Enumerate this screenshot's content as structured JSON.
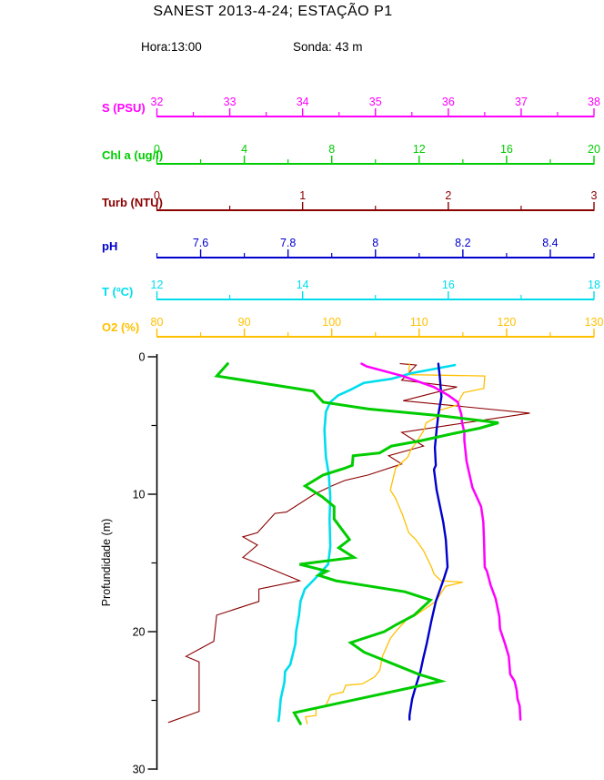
{
  "header": {
    "title": "SANEST 2013-4-24; ESTAÇÃO P1",
    "hora_label": "Hora:13:00",
    "sonda_label": "Sonda: 43 m"
  },
  "chart_data": {
    "type": "line",
    "variant": "oceanographic-depth-profile",
    "title": "SANEST 2013-4-24; ESTAÇÃO P1",
    "ylabel": "Profundidade (m)",
    "y_range": [
      0,
      30
    ],
    "y_major_ticks": [
      0,
      10,
      20,
      30
    ],
    "y_minor_ticks": [
      5,
      15,
      25
    ],
    "grid": "off",
    "legend": "stacked-top-axes",
    "axes": [
      {
        "id": "salinity",
        "label": "S (PSU)",
        "color": "#FF00FF",
        "min": 32,
        "max": 38,
        "major_ticks": [
          32,
          33,
          34,
          35,
          36,
          37,
          38
        ],
        "minor_step": 0.5
      },
      {
        "id": "chl",
        "label": "Chl a (ug/l)",
        "color": "#00CC00",
        "min": 0,
        "max": 20,
        "major_ticks": [
          0,
          4,
          8,
          12,
          16,
          20
        ],
        "minor_step": 2
      },
      {
        "id": "turb",
        "label": "Turb (NTU)",
        "color": "#8B0000",
        "min": 0,
        "max": 3,
        "major_ticks": [
          0,
          1,
          2,
          3
        ],
        "minor_step": 0.5
      },
      {
        "id": "ph",
        "label": "pH",
        "color": "#0000CC",
        "min": 7.5,
        "max": 8.5,
        "major_ticks": [
          7.6,
          7.8,
          8,
          8.2,
          8.4
        ],
        "minor_step": 0.1
      },
      {
        "id": "temp",
        "label": "T (ºC)",
        "color": "#00DDEE",
        "min": 12,
        "max": 18,
        "major_ticks": [
          12,
          14,
          16,
          18
        ],
        "minor_step": 1
      },
      {
        "id": "o2",
        "label": "O2 (%)",
        "color": "#FFC000",
        "min": 80,
        "max": 130,
        "major_ticks": [
          80,
          90,
          100,
          110,
          120,
          130
        ],
        "minor_step": 5
      }
    ],
    "series": [
      {
        "id": "turb",
        "name": "Turb (NTU)",
        "color": "#8B0000",
        "points": [
          [
            1.67,
            0.5
          ],
          [
            1.78,
            0.6
          ],
          [
            1.68,
            1.7
          ],
          [
            2.06,
            2.2
          ],
          [
            1.69,
            3.2
          ],
          [
            2.56,
            4.1
          ],
          [
            1.68,
            5.5
          ],
          [
            1.83,
            6.5
          ],
          [
            1.59,
            7.2
          ],
          [
            1.68,
            7.8
          ],
          [
            1.45,
            8.6
          ],
          [
            1.29,
            9.0
          ],
          [
            1.2,
            9.4
          ],
          [
            1.08,
            10.0
          ],
          [
            0.89,
            11.3
          ],
          [
            0.81,
            11.4
          ],
          [
            0.69,
            12.8
          ],
          [
            0.59,
            13.1
          ],
          [
            0.69,
            13.7
          ],
          [
            0.59,
            14.6
          ],
          [
            0.73,
            15.2
          ],
          [
            0.98,
            16.3
          ],
          [
            0.7,
            16.9
          ],
          [
            0.7,
            17.8
          ],
          [
            0.41,
            18.8
          ],
          [
            0.39,
            20.7
          ],
          [
            0.2,
            21.8
          ],
          [
            0.29,
            22.2
          ],
          [
            0.29,
            25.8
          ],
          [
            0.08,
            26.6
          ]
        ]
      },
      {
        "id": "o2",
        "name": "O2 (%)",
        "color": "#FFC000",
        "points": [
          [
            108.9,
            0.5
          ],
          [
            108.8,
            1.3
          ],
          [
            117.5,
            1.4
          ],
          [
            117.4,
            2.3
          ],
          [
            115.1,
            2.6
          ],
          [
            114.8,
            2.9
          ],
          [
            114.4,
            3.5
          ],
          [
            112.3,
            3.9
          ],
          [
            112.0,
            4.4
          ],
          [
            110.8,
            4.8
          ],
          [
            110.5,
            5.4
          ],
          [
            109.9,
            6.0
          ],
          [
            109.6,
            6.3
          ],
          [
            109.1,
            6.7
          ],
          [
            108.7,
            7.3
          ],
          [
            107.3,
            8.1
          ],
          [
            106.7,
            9.7
          ],
          [
            107.3,
            10.3
          ],
          [
            108.1,
            11.5
          ],
          [
            108.8,
            12.8
          ],
          [
            109.6,
            13.3
          ],
          [
            110.5,
            14.1
          ],
          [
            111.4,
            15.3
          ],
          [
            111.7,
            15.8
          ],
          [
            112.5,
            16.3
          ],
          [
            115.0,
            16.4
          ],
          [
            113.0,
            16.7
          ],
          [
            111.9,
            17.8
          ],
          [
            109.6,
            18.8
          ],
          [
            108.9,
            18.9
          ],
          [
            107.3,
            20.0
          ],
          [
            106.7,
            20.5
          ],
          [
            105.8,
            21.8
          ],
          [
            105.5,
            22.8
          ],
          [
            104.9,
            23.3
          ],
          [
            103.5,
            23.8
          ],
          [
            101.6,
            23.9
          ],
          [
            101.3,
            24.4
          ],
          [
            99.9,
            24.6
          ],
          [
            99.3,
            25.4
          ],
          [
            98.2,
            25.6
          ],
          [
            98.2,
            26.1
          ],
          [
            97.0,
            26.2
          ],
          [
            97.2,
            26.7
          ]
        ]
      },
      {
        "id": "temp",
        "name": "T (ºC)",
        "color": "#00DDEE",
        "points": [
          [
            16.09,
            0.6
          ],
          [
            15.49,
            1.2
          ],
          [
            15.22,
            1.6
          ],
          [
            14.84,
            1.9
          ],
          [
            14.66,
            2.4
          ],
          [
            14.49,
            2.8
          ],
          [
            14.38,
            3.3
          ],
          [
            14.32,
            4.0
          ],
          [
            14.3,
            5.3
          ],
          [
            14.31,
            6.4
          ],
          [
            14.32,
            7.3
          ],
          [
            14.36,
            8.6
          ],
          [
            14.38,
            10.2
          ],
          [
            14.37,
            11.8
          ],
          [
            14.38,
            13.8
          ],
          [
            14.35,
            15.1
          ],
          [
            14.16,
            16.2
          ],
          [
            14.03,
            16.9
          ],
          [
            13.97,
            17.8
          ],
          [
            13.95,
            18.8
          ],
          [
            13.91,
            20.0
          ],
          [
            13.9,
            20.9
          ],
          [
            13.83,
            22.4
          ],
          [
            13.76,
            22.9
          ],
          [
            13.75,
            23.7
          ],
          [
            13.7,
            24.9
          ],
          [
            13.68,
            26.1
          ],
          [
            13.67,
            26.5
          ]
        ]
      },
      {
        "id": "ph",
        "name": "pH",
        "color": "#0000CC",
        "points": [
          [
            8.144,
            0.5
          ],
          [
            8.147,
            1.4
          ],
          [
            8.151,
            2.9
          ],
          [
            8.144,
            4.2
          ],
          [
            8.14,
            5.3
          ],
          [
            8.136,
            6.6
          ],
          [
            8.138,
            7.9
          ],
          [
            8.134,
            8.2
          ],
          [
            8.14,
            9.7
          ],
          [
            8.155,
            12.0
          ],
          [
            8.161,
            13.3
          ],
          [
            8.165,
            15.3
          ],
          [
            8.157,
            16.1
          ],
          [
            8.138,
            17.8
          ],
          [
            8.128,
            19.2
          ],
          [
            8.117,
            20.9
          ],
          [
            8.109,
            22.0
          ],
          [
            8.103,
            22.9
          ],
          [
            8.093,
            23.9
          ],
          [
            8.084,
            24.9
          ],
          [
            8.078,
            26.1
          ],
          [
            8.078,
            26.4
          ]
        ]
      },
      {
        "id": "salinity",
        "name": "S (PSU)",
        "color": "#FF00FF",
        "points": [
          [
            34.81,
            0.5
          ],
          [
            34.88,
            0.7
          ],
          [
            35.37,
            1.4
          ],
          [
            35.8,
            2.2
          ],
          [
            36.0,
            2.8
          ],
          [
            36.13,
            3.3
          ],
          [
            36.18,
            4.2
          ],
          [
            36.19,
            4.8
          ],
          [
            36.22,
            5.5
          ],
          [
            36.22,
            6.1
          ],
          [
            36.24,
            7.1
          ],
          [
            36.25,
            7.6
          ],
          [
            36.33,
            9.5
          ],
          [
            36.45,
            10.9
          ],
          [
            36.48,
            12.0
          ],
          [
            36.49,
            13.3
          ],
          [
            36.5,
            15.3
          ],
          [
            36.53,
            15.6
          ],
          [
            36.58,
            16.6
          ],
          [
            36.65,
            17.6
          ],
          [
            36.7,
            18.9
          ],
          [
            36.71,
            19.8
          ],
          [
            36.78,
            20.9
          ],
          [
            36.83,
            21.8
          ],
          [
            36.85,
            23.1
          ],
          [
            36.91,
            23.6
          ],
          [
            36.94,
            24.3
          ],
          [
            36.95,
            24.9
          ],
          [
            36.98,
            25.4
          ],
          [
            36.99,
            26.4
          ]
        ]
      },
      {
        "id": "chl",
        "name": "Chl a (ug/l)",
        "color": "#00CC00",
        "points": [
          [
            3.24,
            0.5
          ],
          [
            2.74,
            1.4
          ],
          [
            7.15,
            2.5
          ],
          [
            7.61,
            3.3
          ],
          [
            9.69,
            3.8
          ],
          [
            13.01,
            4.3
          ],
          [
            15.63,
            4.8
          ],
          [
            14.76,
            5.2
          ],
          [
            13.51,
            5.6
          ],
          [
            12.1,
            6.1
          ],
          [
            10.73,
            6.5
          ],
          [
            10.19,
            7.0
          ],
          [
            8.98,
            7.2
          ],
          [
            8.94,
            7.9
          ],
          [
            8.61,
            8.1
          ],
          [
            7.61,
            8.6
          ],
          [
            6.99,
            9.2
          ],
          [
            6.78,
            9.4
          ],
          [
            7.57,
            10.2
          ],
          [
            8.11,
            10.9
          ],
          [
            8.11,
            11.8
          ],
          [
            8.81,
            13.3
          ],
          [
            8.32,
            13.9
          ],
          [
            9.02,
            14.6
          ],
          [
            6.53,
            15.1
          ],
          [
            7.78,
            15.6
          ],
          [
            7.4,
            15.9
          ],
          [
            8.19,
            16.3
          ],
          [
            11.35,
            17.1
          ],
          [
            12.52,
            17.7
          ],
          [
            11.77,
            18.8
          ],
          [
            10.94,
            19.5
          ],
          [
            10.4,
            20.0
          ],
          [
            8.86,
            20.8
          ],
          [
            9.48,
            21.5
          ],
          [
            10.73,
            22.3
          ],
          [
            11.98,
            23.1
          ],
          [
            13.01,
            23.6
          ],
          [
            6.28,
            25.9
          ],
          [
            6.57,
            26.7
          ]
        ]
      }
    ]
  }
}
